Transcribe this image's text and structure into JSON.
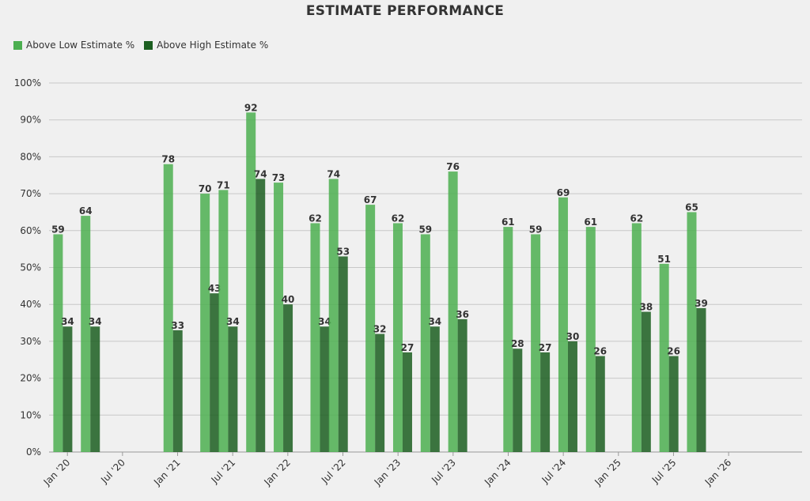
{
  "chart_data": {
    "type": "bar",
    "title": "ESTIMATE PERFORMANCE",
    "ylim": [
      0,
      100
    ],
    "y_ticks": [
      "0%",
      "10%",
      "20%",
      "30%",
      "40%",
      "50%",
      "60%",
      "70%",
      "80%",
      "90%",
      "100%"
    ],
    "x_ticks": [
      "Jan '20",
      "Jul '20",
      "Jan '21",
      "Jul '21",
      "Jan '22",
      "Jul '22",
      "Jan '23",
      "Jul '23",
      "Jan '24",
      "Jul '24",
      "Jan '25",
      "Jul '25",
      "Jan '26"
    ],
    "x_start": "2019-11",
    "x_end": "2026-09",
    "categories": [
      "2019-12",
      "2020-03",
      "2020-12",
      "2021-04",
      "2021-06",
      "2021-09",
      "2021-12",
      "2022-04",
      "2022-06",
      "2022-10",
      "2023-01",
      "2023-04",
      "2023-07",
      "2024-01",
      "2024-04",
      "2024-07",
      "2024-10",
      "2025-03",
      "2025-06",
      "2025-09",
      "2025-12",
      "2026-03"
    ],
    "series": [
      {
        "name": "Above Low Estimate %",
        "color": "#4caf50",
        "values": [
          59,
          64,
          78,
          70,
          71,
          92,
          73,
          62,
          74,
          67,
          62,
          59,
          76,
          61,
          59,
          69,
          61,
          62,
          51,
          65,
          null,
          null
        ]
      },
      {
        "name": "Above High Estimate %",
        "color": "#1b5e20",
        "values": [
          34,
          34,
          33,
          43,
          34,
          74,
          40,
          34,
          53,
          32,
          27,
          34,
          36,
          28,
          27,
          30,
          26,
          38,
          26,
          39,
          null,
          null
        ]
      }
    ],
    "grid": true,
    "legend": "top-left"
  }
}
